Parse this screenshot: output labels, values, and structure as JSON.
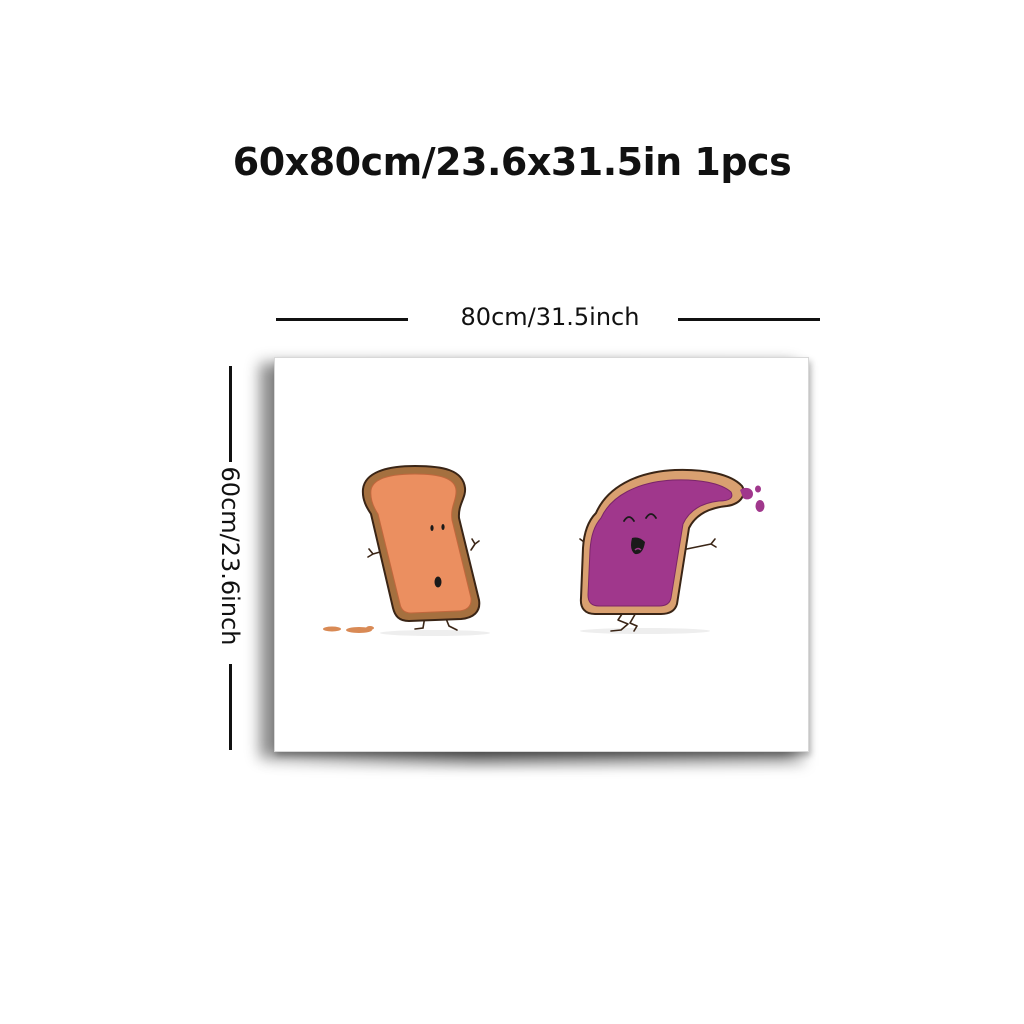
{
  "product": {
    "title": "60x80cm/23.6x31.5in 1pcs",
    "width_label": "80cm/31.5inch",
    "height_label": "60cm/23.6inch"
  },
  "artwork": {
    "subject": "two cartoon toast slices",
    "colors": {
      "crust": "#a5703f",
      "peanut_butter": "#eb8f60",
      "jelly": "#a0378c",
      "outline": "#3a2516"
    }
  }
}
